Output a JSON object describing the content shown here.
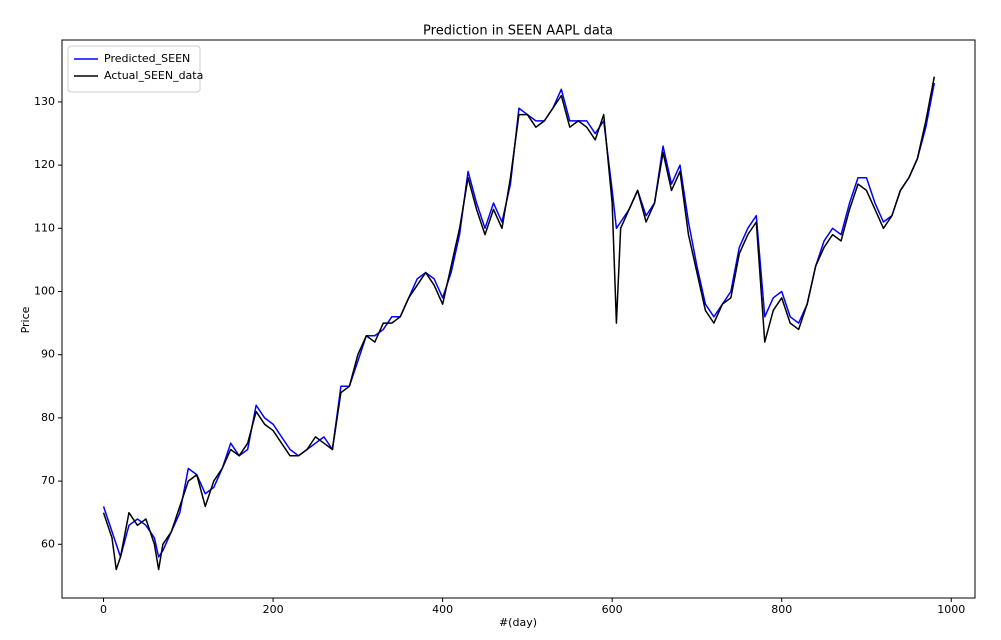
{
  "chart_data": {
    "type": "line",
    "title": "Prediction in SEEN AAPL data",
    "x_label": "#(day)",
    "y_label": "Price",
    "xlim": [
      -49,
      1028
    ],
    "ylim": [
      51.5,
      139.8
    ],
    "xticks": [
      0,
      200,
      400,
      600,
      800,
      1000
    ],
    "yticks": [
      60,
      70,
      80,
      90,
      100,
      110,
      120,
      130
    ],
    "legend": "upper-left",
    "x": [
      0,
      10,
      15,
      20,
      30,
      40,
      50,
      60,
      65,
      70,
      80,
      90,
      100,
      110,
      120,
      130,
      140,
      150,
      160,
      170,
      180,
      190,
      200,
      210,
      220,
      230,
      240,
      250,
      260,
      270,
      280,
      290,
      300,
      310,
      320,
      330,
      340,
      350,
      360,
      370,
      380,
      390,
      400,
      410,
      420,
      430,
      440,
      450,
      460,
      470,
      480,
      490,
      500,
      510,
      520,
      530,
      540,
      550,
      560,
      570,
      580,
      590,
      600,
      605,
      610,
      620,
      630,
      640,
      650,
      660,
      670,
      680,
      690,
      700,
      710,
      720,
      730,
      740,
      750,
      760,
      770,
      780,
      790,
      800,
      810,
      820,
      830,
      840,
      850,
      860,
      870,
      880,
      890,
      900,
      910,
      920,
      930,
      940,
      950,
      960,
      970,
      980
    ],
    "series": [
      {
        "name": "Predicted_SEEN",
        "color": "#0000ff",
        "values": [
          66,
          62,
          60,
          58,
          63,
          64,
          63,
          61,
          58,
          59,
          62,
          65,
          72,
          71,
          68,
          69,
          72,
          76,
          74,
          75,
          82,
          80,
          79,
          77,
          75,
          74,
          75,
          76,
          77,
          75,
          85,
          85,
          89,
          93,
          93,
          94,
          96,
          96,
          99,
          102,
          103,
          102,
          99,
          103,
          109,
          119,
          114,
          110,
          114,
          111,
          117,
          129,
          128,
          127,
          127,
          129,
          132,
          127,
          127,
          127,
          125,
          127,
          116,
          110,
          111,
          113,
          116,
          112,
          114,
          123,
          117,
          120,
          111,
          104,
          98,
          96,
          98,
          100,
          107,
          110,
          112,
          96,
          99,
          100,
          96,
          95,
          98,
          104,
          108,
          110,
          109,
          114,
          118,
          118,
          114,
          111,
          112,
          116,
          118,
          121,
          126,
          133
        ]
      },
      {
        "name": "Actual_SEEN_data",
        "color": "#000000",
        "values": [
          65,
          61,
          56,
          58,
          65,
          63,
          64,
          60,
          56,
          60,
          62,
          66,
          70,
          71,
          66,
          70,
          72,
          75,
          74,
          76,
          81,
          79,
          78,
          76,
          74,
          74,
          75,
          77,
          76,
          75,
          84,
          85,
          90,
          93,
          92,
          95,
          95,
          96,
          99,
          101,
          103,
          101,
          98,
          104,
          110,
          118,
          113,
          109,
          113,
          110,
          118,
          128,
          128,
          126,
          127,
          129,
          131,
          126,
          127,
          126,
          124,
          128,
          114,
          95,
          110,
          113,
          116,
          111,
          114,
          122,
          116,
          119,
          109,
          103,
          97,
          95,
          98,
          99,
          106,
          109,
          111,
          92,
          97,
          99,
          95,
          94,
          98,
          104,
          107,
          109,
          108,
          113,
          117,
          116,
          113,
          110,
          112,
          116,
          118,
          121,
          127,
          134
        ]
      }
    ]
  }
}
